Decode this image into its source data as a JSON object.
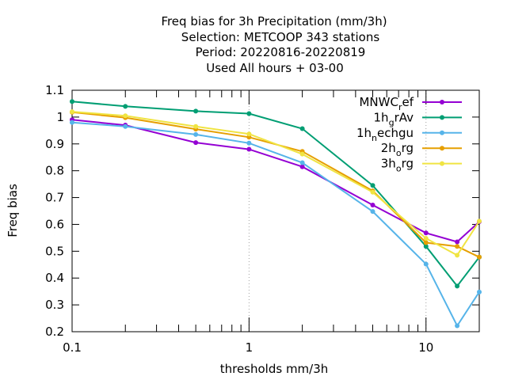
{
  "chart_data": {
    "type": "line",
    "title_lines": [
      "Freq bias  for 3h Precipitation (mm/3h)",
      "Selection: METCOOP    343 stations",
      "Period: 20220816-20220819",
      "Used  All hours  + 03-00"
    ],
    "xlabel": "thresholds mm/3h",
    "ylabel": "Freq bias",
    "x_scale": "log",
    "xlim": [
      0.1,
      20
    ],
    "ylim": [
      0.2,
      1.1
    ],
    "x_ticks": [
      0.1,
      1,
      10
    ],
    "x_tick_labels": [
      "0.1",
      "1",
      "10"
    ],
    "y_ticks": [
      0.2,
      0.3,
      0.4,
      0.5,
      0.6,
      0.7,
      0.8,
      0.9,
      1.0,
      1.1
    ],
    "y_tick_labels": [
      "0.2",
      "0.3",
      "0.4",
      "0.5",
      "0.6",
      "0.7",
      "0.8",
      "0.9",
      "1",
      "1.1"
    ],
    "grid": "x major lines dotted",
    "legend_position": "top-right",
    "x": [
      0.1,
      0.2,
      0.5,
      1,
      2,
      5,
      10,
      15,
      20
    ],
    "series": [
      {
        "label_base": "MNWC",
        "label_sub": "r",
        "label_rest": "ef",
        "color": "#9400d3",
        "values": [
          0.99,
          0.97,
          0.905,
          0.88,
          0.815,
          0.672,
          0.568,
          0.535,
          0.61
        ]
      },
      {
        "label_base": "1h",
        "label_sub": "g",
        "label_rest": "rAv",
        "color": "#009e73",
        "values": [
          1.058,
          1.04,
          1.022,
          1.013,
          0.957,
          0.745,
          0.518,
          0.37,
          0.478
        ]
      },
      {
        "label_base": "1h",
        "label_sub": "n",
        "label_rest": "echgu",
        "color": "#56b4e9",
        "values": [
          0.98,
          0.965,
          0.935,
          0.903,
          0.83,
          0.648,
          0.452,
          0.222,
          0.348
        ]
      },
      {
        "label_base": "2h",
        "label_sub": "o",
        "label_rest": "rg",
        "color": "#e69f00",
        "values": [
          1.018,
          0.998,
          0.955,
          0.925,
          0.872,
          0.725,
          0.532,
          0.518,
          0.478
        ]
      },
      {
        "label_base": "3h",
        "label_sub": "o",
        "label_rest": "rg",
        "color": "#f0e442",
        "values": [
          1.02,
          1.005,
          0.965,
          0.937,
          0.862,
          0.72,
          0.548,
          0.485,
          0.612
        ]
      }
    ]
  }
}
